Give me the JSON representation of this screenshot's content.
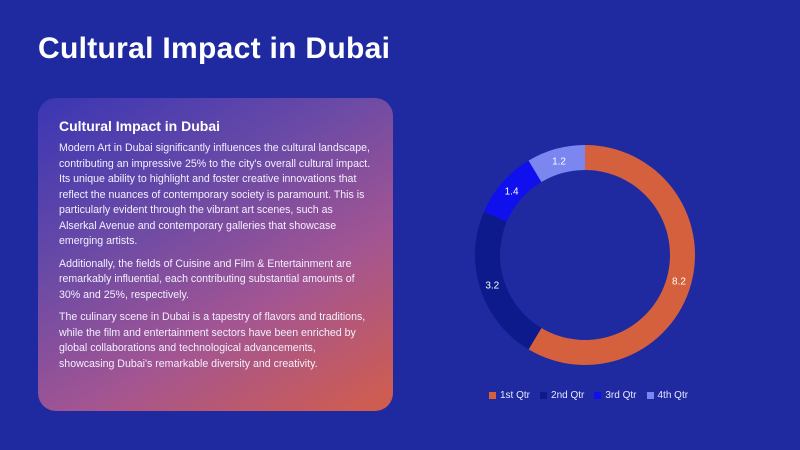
{
  "slide": {
    "title": "Cultural Impact in Dubai"
  },
  "card": {
    "heading": "Cultural Impact in Dubai",
    "paragraphs": [
      "Modern Art in Dubai significantly influences the cultural landscape, contributing an impressive 25% to the city's overall cultural impact. Its unique ability to highlight and foster creative innovations that reflect the nuances of contemporary society is paramount. This is particularly evident through the vibrant art scenes, such as Alserkal Avenue and contemporary galleries that showcase emerging artists.",
      "Additionally, the fields of Cuisine and Film & Entertainment are remarkably influential, each contributing substantial amounts of 30% and 25%, respectively.",
      "The culinary scene in Dubai is a tapestry of flavors and traditions, while the film and entertainment sectors have been enriched by global collaborations and technological advancements, showcasing Dubai's remarkable diversity and creativity."
    ]
  },
  "chart_data": {
    "type": "pie",
    "subtype": "doughnut",
    "categories": [
      "1st Qtr",
      "2nd Qtr",
      "3rd Qtr",
      "4th Qtr"
    ],
    "values": [
      8.2,
      3.2,
      1.4,
      1.2
    ],
    "data_labels": [
      "8.2",
      "3.2",
      "1.4",
      "1.2"
    ],
    "colors": [
      "#d4603e",
      "#0c1a8c",
      "#1010ee",
      "#7b86f0"
    ],
    "legend_position": "bottom"
  }
}
